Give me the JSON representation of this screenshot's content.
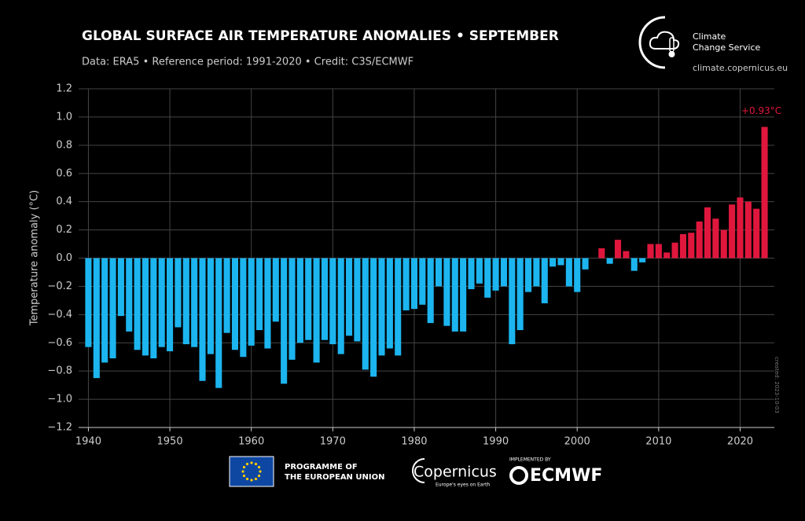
{
  "chart_data": {
    "type": "bar",
    "title": "GLOBAL SURFACE AIR TEMPERATURE ANOMALIES • SEPTEMBER",
    "subtitle": "Data: ERA5 • Reference period: 1991-2020 • Credit: C3S/ECMWF",
    "y_label": "Temperature anomaly (°C)",
    "created": "created: 2023-10-03",
    "x": [
      1940,
      1941,
      1942,
      1943,
      1944,
      1945,
      1946,
      1947,
      1948,
      1949,
      1950,
      1951,
      1952,
      1953,
      1954,
      1955,
      1956,
      1957,
      1958,
      1959,
      1960,
      1961,
      1962,
      1963,
      1964,
      1965,
      1966,
      1967,
      1968,
      1969,
      1970,
      1971,
      1972,
      1973,
      1974,
      1975,
      1976,
      1977,
      1978,
      1979,
      1980,
      1981,
      1982,
      1983,
      1984,
      1985,
      1986,
      1987,
      1988,
      1989,
      1990,
      1991,
      1992,
      1993,
      1994,
      1995,
      1996,
      1997,
      1998,
      1999,
      2000,
      2001,
      2002,
      2003,
      2004,
      2005,
      2006,
      2007,
      2008,
      2009,
      2010,
      2011,
      2012,
      2013,
      2014,
      2015,
      2016,
      2017,
      2018,
      2019,
      2020,
      2021,
      2022,
      2023
    ],
    "values": [
      -0.63,
      -0.85,
      -0.74,
      -0.71,
      -0.41,
      -0.52,
      -0.65,
      -0.69,
      -0.71,
      -0.63,
      -0.66,
      -0.49,
      -0.61,
      -0.63,
      -0.87,
      -0.68,
      -0.92,
      -0.53,
      -0.65,
      -0.7,
      -0.62,
      -0.51,
      -0.64,
      -0.45,
      -0.89,
      -0.72,
      -0.6,
      -0.58,
      -0.74,
      -0.58,
      -0.61,
      -0.68,
      -0.55,
      -0.59,
      -0.79,
      -0.84,
      -0.69,
      -0.64,
      -0.69,
      -0.37,
      -0.36,
      -0.33,
      -0.46,
      -0.2,
      -0.48,
      -0.52,
      -0.52,
      -0.22,
      -0.18,
      -0.28,
      -0.23,
      -0.2,
      -0.61,
      -0.51,
      -0.24,
      -0.2,
      -0.32,
      -0.06,
      -0.05,
      -0.2,
      -0.24,
      -0.08,
      0.0,
      0.07,
      -0.04,
      0.13,
      0.05,
      -0.09,
      -0.03,
      0.1,
      0.1,
      0.04,
      0.11,
      0.17,
      0.18,
      0.26,
      0.36,
      0.28,
      0.2,
      0.38,
      0.43,
      0.4,
      0.35,
      0.93
    ],
    "value_labels": [
      null,
      null,
      null,
      null,
      null,
      null,
      null,
      null,
      null,
      null,
      null,
      null,
      null,
      null,
      null,
      null,
      null,
      null,
      null,
      null,
      null,
      null,
      null,
      null,
      null,
      null,
      null,
      null,
      null,
      null,
      null,
      null,
      null,
      null,
      null,
      null,
      null,
      null,
      null,
      null,
      null,
      null,
      null,
      null,
      null,
      null,
      null,
      null,
      null,
      null,
      null,
      null,
      null,
      null,
      null,
      null,
      null,
      null,
      null,
      null,
      null,
      null,
      null,
      null,
      null,
      null,
      null,
      null,
      null,
      null,
      null,
      null,
      null,
      null,
      null,
      null,
      null,
      null,
      null,
      null,
      null,
      null,
      null,
      "+0.93°C"
    ],
    "positive_color": "#e0173d",
    "negative_color": "#1cb5ef",
    "xlim": [
      1938.8,
      2024.2
    ],
    "xticks": [
      1940,
      1950,
      1960,
      1970,
      1980,
      1990,
      2000,
      2010,
      2020
    ],
    "ylim": [
      -1.2,
      1.2
    ],
    "yticks": [
      {
        "value": -1.2,
        "label": "−1.2"
      },
      {
        "value": -1.0,
        "label": "−1.0"
      },
      {
        "value": -0.8,
        "label": "−0.8"
      },
      {
        "value": -0.6,
        "label": "−0.6"
      },
      {
        "value": -0.4,
        "label": "−0.4"
      },
      {
        "value": -0.2,
        "label": "−0.2"
      },
      {
        "value": 0,
        "label": "0.0"
      },
      0.2,
      0.4,
      0.6,
      0.8,
      {
        "value": 1.0,
        "label": "1.0"
      },
      {
        "value": 1.2,
        "label": "1.2"
      }
    ],
    "grid": true
  },
  "logos": {
    "c3s_name_1": "Climate",
    "c3s_name_2": "Change Service",
    "c3s_url": "climate.copernicus.eu",
    "eu_1": "PROGRAMME OF",
    "eu_2": "THE EUROPEAN UNION",
    "copernicus": "Copernicus",
    "copernicus_tag": "Europe's eyes on Earth",
    "implemented": "IMPLEMENTED BY",
    "ecmwf": "ECMWF"
  }
}
